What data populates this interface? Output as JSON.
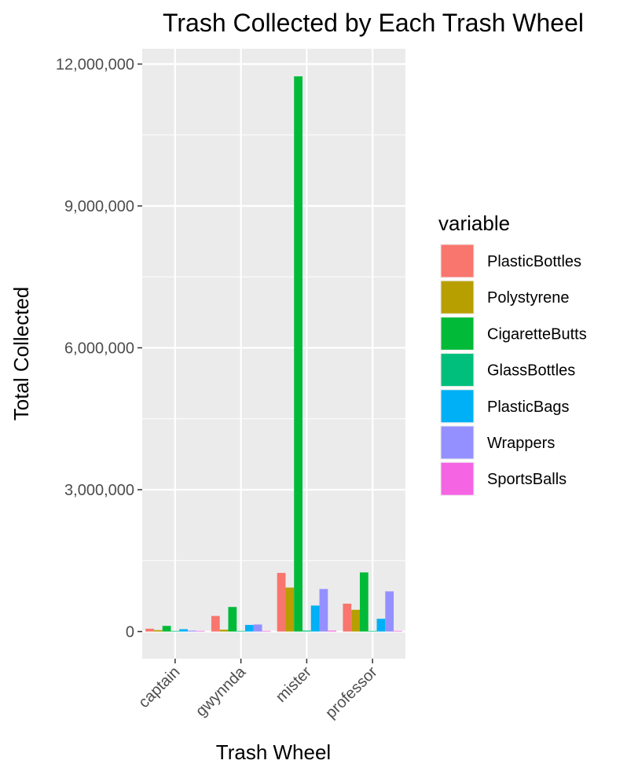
{
  "chart_data": {
    "type": "bar",
    "title": "Trash Collected by Each Trash Wheel",
    "xlabel": "Trash Wheel",
    "ylabel": "Total Collected",
    "categories": [
      "captain",
      "gwynnda",
      "mister",
      "professor"
    ],
    "ylim": [
      -600000,
      12300000
    ],
    "yticks": [
      0,
      3000000,
      6000000,
      9000000,
      12000000
    ],
    "ytick_labels": [
      "0",
      "3,000,000",
      "6,000,000",
      "9,000,000",
      "12,000,000"
    ],
    "grid": true,
    "legend": {
      "title": "variable",
      "position": "right"
    },
    "series": [
      {
        "name": "PlasticBottles",
        "color": "#F8766D",
        "values": [
          60000,
          330000,
          1240000,
          590000
        ]
      },
      {
        "name": "Polystyrene",
        "color": "#B79F00",
        "values": [
          30000,
          40000,
          930000,
          460000
        ]
      },
      {
        "name": "CigaretteButts",
        "color": "#00BA38",
        "values": [
          120000,
          520000,
          11740000,
          1250000
        ]
      },
      {
        "name": "GlassBottles",
        "color": "#00BF7D",
        "values": [
          3000,
          3000,
          20000,
          10000
        ]
      },
      {
        "name": "PlasticBags",
        "color": "#00B0F6",
        "values": [
          50000,
          140000,
          550000,
          270000
        ]
      },
      {
        "name": "Wrappers",
        "color": "#9590FF",
        "values": [
          20000,
          150000,
          900000,
          850000
        ]
      },
      {
        "name": "SportsBalls",
        "color": "#F564E3",
        "values": [
          5000,
          2000,
          20000,
          5000
        ]
      }
    ]
  }
}
